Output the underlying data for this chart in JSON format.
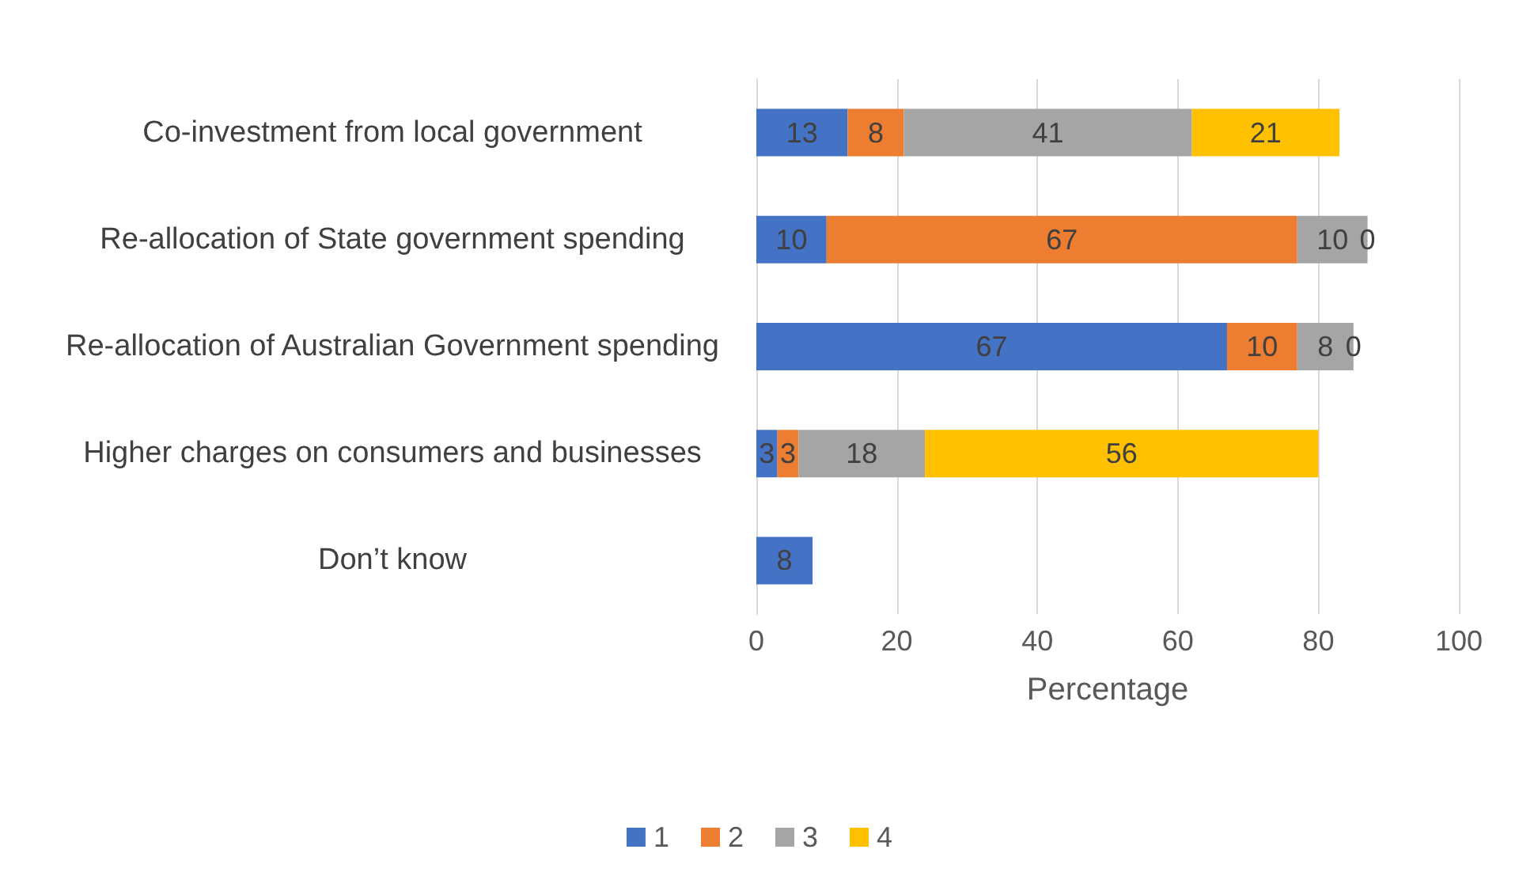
{
  "chart_data": {
    "type": "bar",
    "orientation": "horizontal",
    "stacked": true,
    "xlabel": "Percentage",
    "categories": [
      "Co-investment from local government",
      "Re-allocation of State government spending",
      "Re-allocation of Australian Government spending",
      "Higher charges on consumers and businesses",
      "Don’t know"
    ],
    "series": [
      {
        "name": "1",
        "color": "#4472c4",
        "values": [
          13,
          10,
          67,
          3,
          8
        ]
      },
      {
        "name": "2",
        "color": "#ed7d31",
        "values": [
          8,
          67,
          10,
          3,
          null
        ]
      },
      {
        "name": "3",
        "color": "#a5a5a5",
        "values": [
          41,
          10,
          8,
          18,
          null
        ]
      },
      {
        "name": "4",
        "color": "#ffc000",
        "values": [
          21,
          0,
          0,
          56,
          null
        ]
      }
    ],
    "xlim": [
      0,
      100
    ],
    "xticks": [
      0,
      20,
      40,
      60,
      80,
      100
    ],
    "grid": "x",
    "legend": "bottom",
    "data_labels": true
  }
}
